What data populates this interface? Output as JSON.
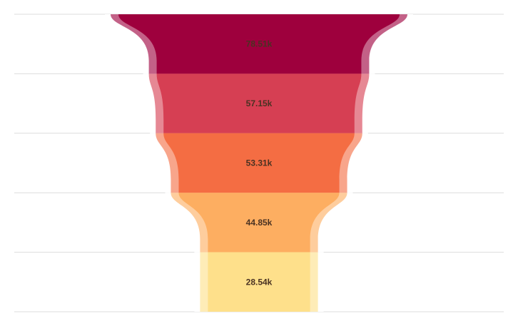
{
  "chart_data": {
    "type": "funnel",
    "stages": [
      {
        "value": 78510,
        "label": "78.51k",
        "color": "#9e003d"
      },
      {
        "value": 57150,
        "label": "57.15k",
        "color": "#d63f53"
      },
      {
        "value": 53310,
        "label": "53.31k",
        "color": "#f46d43"
      },
      {
        "value": 44850,
        "label": "44.85k",
        "color": "#fdae61"
      },
      {
        "value": 28540,
        "label": "28.54k",
        "color": "#fee08b"
      }
    ],
    "label_color": "#4a3222",
    "gridline_color": "#dddddd",
    "grid": true,
    "legend": "none"
  }
}
